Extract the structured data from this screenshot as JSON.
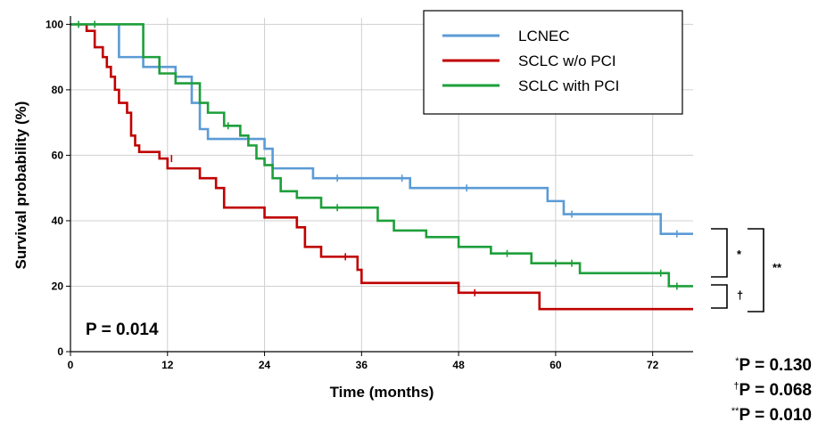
{
  "chart_data": {
    "type": "line",
    "xlabel": "Time (months)",
    "ylabel": "Survival probability (%)",
    "xlim": [
      0,
      77
    ],
    "ylim": [
      0,
      102
    ],
    "x_ticks": [
      0,
      12,
      24,
      36,
      48,
      60,
      72
    ],
    "y_ticks": [
      0,
      20,
      40,
      60,
      80,
      100
    ],
    "grid": true,
    "legend_position": "top-right",
    "series": [
      {
        "name": "LCNEC",
        "color": "#5b9bd5",
        "steps": [
          [
            0,
            100
          ],
          [
            6,
            90
          ],
          [
            9,
            87
          ],
          [
            13,
            84
          ],
          [
            15,
            76
          ],
          [
            16,
            68
          ],
          [
            17,
            65
          ],
          [
            24,
            62
          ],
          [
            25,
            56
          ],
          [
            30,
            53
          ],
          [
            42,
            50
          ],
          [
            59,
            46
          ],
          [
            61,
            42
          ],
          [
            73,
            36
          ],
          [
            77,
            36
          ]
        ],
        "censored": [
          [
            33,
            53
          ],
          [
            41,
            53
          ],
          [
            49,
            50
          ],
          [
            62,
            42
          ],
          [
            75,
            36
          ]
        ]
      },
      {
        "name": "SCLC w/o PCI",
        "color": "#c00000",
        "steps": [
          [
            0,
            100
          ],
          [
            2,
            98
          ],
          [
            3,
            93
          ],
          [
            4,
            90
          ],
          [
            4.5,
            87
          ],
          [
            5,
            84
          ],
          [
            5.5,
            80
          ],
          [
            6,
            76
          ],
          [
            7,
            73
          ],
          [
            7.5,
            66
          ],
          [
            8,
            63
          ],
          [
            8.5,
            61
          ],
          [
            11,
            59
          ],
          [
            12,
            56
          ],
          [
            16,
            53
          ],
          [
            18,
            50
          ],
          [
            19,
            44
          ],
          [
            24,
            41
          ],
          [
            28,
            38
          ],
          [
            29,
            32
          ],
          [
            31,
            29
          ],
          [
            35.5,
            25
          ],
          [
            36,
            21
          ],
          [
            48,
            18
          ],
          [
            58,
            13
          ],
          [
            77,
            13
          ]
        ],
        "censored": [
          [
            12.5,
            59
          ],
          [
            34,
            29
          ],
          [
            50,
            18
          ]
        ]
      },
      {
        "name": "SCLC with PCI",
        "color": "#1e9f3b",
        "steps": [
          [
            0,
            100
          ],
          [
            9,
            90
          ],
          [
            11,
            85
          ],
          [
            13,
            82
          ],
          [
            16,
            76
          ],
          [
            17,
            73
          ],
          [
            19,
            69
          ],
          [
            21,
            66
          ],
          [
            22,
            63
          ],
          [
            23,
            59
          ],
          [
            24,
            57
          ],
          [
            25,
            53
          ],
          [
            26,
            49
          ],
          [
            28,
            47
          ],
          [
            31,
            44
          ],
          [
            38,
            40
          ],
          [
            40,
            37
          ],
          [
            44,
            35
          ],
          [
            48,
            32
          ],
          [
            52,
            30
          ],
          [
            57,
            27
          ],
          [
            63,
            24
          ],
          [
            74,
            20
          ],
          [
            77,
            20
          ]
        ],
        "censored": [
          [
            1,
            100
          ],
          [
            3,
            100
          ],
          [
            19.5,
            69
          ],
          [
            33,
            44
          ],
          [
            54,
            30
          ],
          [
            60,
            27
          ],
          [
            62,
            27
          ],
          [
            73,
            24
          ],
          [
            75,
            20
          ]
        ]
      }
    ],
    "annotations": {
      "overall_p": "P = 0.014",
      "bracket_1_mark": "*",
      "bracket_2_mark": "†",
      "bracket_3_mark": "**",
      "stats": [
        {
          "mark": "*",
          "text": "P = 0.130"
        },
        {
          "mark": "†",
          "text": "P = 0.068"
        },
        {
          "mark": "**",
          "text": "P = 0.010"
        }
      ]
    }
  }
}
